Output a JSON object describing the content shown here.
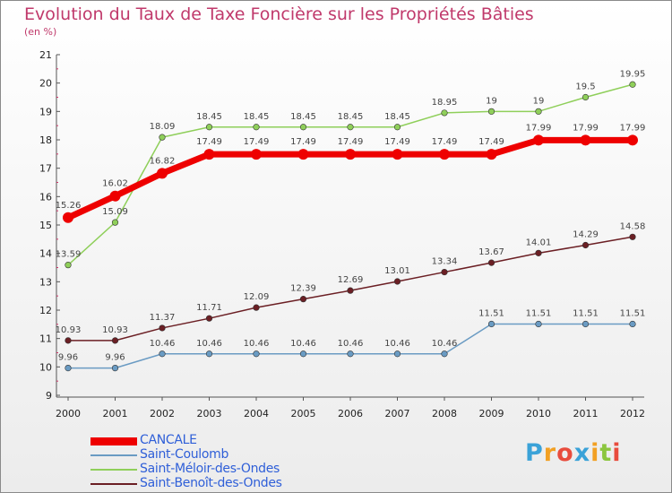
{
  "chart_data": {
    "type": "line",
    "title": "Evolution du Taux de Taxe Foncière sur les Propriétés Bâties",
    "ylabel": "(en %)",
    "xlabel": "",
    "categories": [
      "2000",
      "2001",
      "2002",
      "2003",
      "2004",
      "2005",
      "2006",
      "2007",
      "2008",
      "2009",
      "2010",
      "2011",
      "2012"
    ],
    "ylim": [
      9,
      21
    ],
    "yticks": [
      "9",
      "10",
      "11",
      "12",
      "13",
      "14",
      "15",
      "16",
      "17",
      "18",
      "19",
      "20",
      "21"
    ],
    "grid": false,
    "legend_position": "bottom-left",
    "series": [
      {
        "name": "CANCALE",
        "color": "#ee0000",
        "values": [
          15.26,
          16.02,
          16.82,
          17.49,
          17.49,
          17.49,
          17.49,
          17.49,
          17.49,
          17.49,
          17.99,
          17.99,
          17.99
        ],
        "labels": [
          "15.26",
          "16.02",
          "16.82",
          "17.49",
          "17.49",
          "17.49",
          "17.49",
          "17.49",
          "17.49",
          "17.49",
          "17.99",
          "17.99",
          "17.99"
        ]
      },
      {
        "name": "Saint-Coulomb",
        "color": "#6a9bc3",
        "values": [
          9.96,
          9.96,
          10.46,
          10.46,
          10.46,
          10.46,
          10.46,
          10.46,
          10.46,
          11.51,
          11.51,
          11.51,
          11.51
        ],
        "labels": [
          "9.96",
          "9.96",
          "10.46",
          "10.46",
          "10.46",
          "10.46",
          "10.46",
          "10.46",
          "10.46",
          "11.51",
          "11.51",
          "11.51",
          "11.51"
        ]
      },
      {
        "name": "Saint-Méloir-des-Ondes",
        "color": "#8fcf5a",
        "values": [
          13.59,
          15.09,
          18.09,
          18.45,
          18.45,
          18.45,
          18.45,
          18.45,
          18.95,
          19,
          19,
          19.5,
          19.95
        ],
        "labels": [
          "13.59",
          "15.09",
          "18.09",
          "18.45",
          "18.45",
          "18.45",
          "18.45",
          "18.45",
          "18.95",
          "19",
          "19",
          "19.5",
          "19.95"
        ]
      },
      {
        "name": "Saint-Benoît-des-Ondes",
        "color": "#6b1f24",
        "values": [
          10.93,
          10.93,
          11.37,
          11.71,
          12.09,
          12.39,
          12.69,
          13.01,
          13.34,
          13.67,
          14.01,
          14.29,
          14.58
        ],
        "labels": [
          "10.93",
          "10.93",
          "11.37",
          "11.71",
          "12.09",
          "12.39",
          "12.69",
          "13.01",
          "13.34",
          "13.67",
          "14.01",
          "14.29",
          "14.58"
        ]
      }
    ]
  },
  "logo": {
    "letters": [
      "P",
      "r",
      "o",
      "x",
      "i",
      "t",
      "i"
    ],
    "colors": [
      "#3aa2d8",
      "#f2a023",
      "#e84c3d",
      "#3aa2d8",
      "#f2a023",
      "#8cc63f",
      "#e84c3d"
    ]
  }
}
